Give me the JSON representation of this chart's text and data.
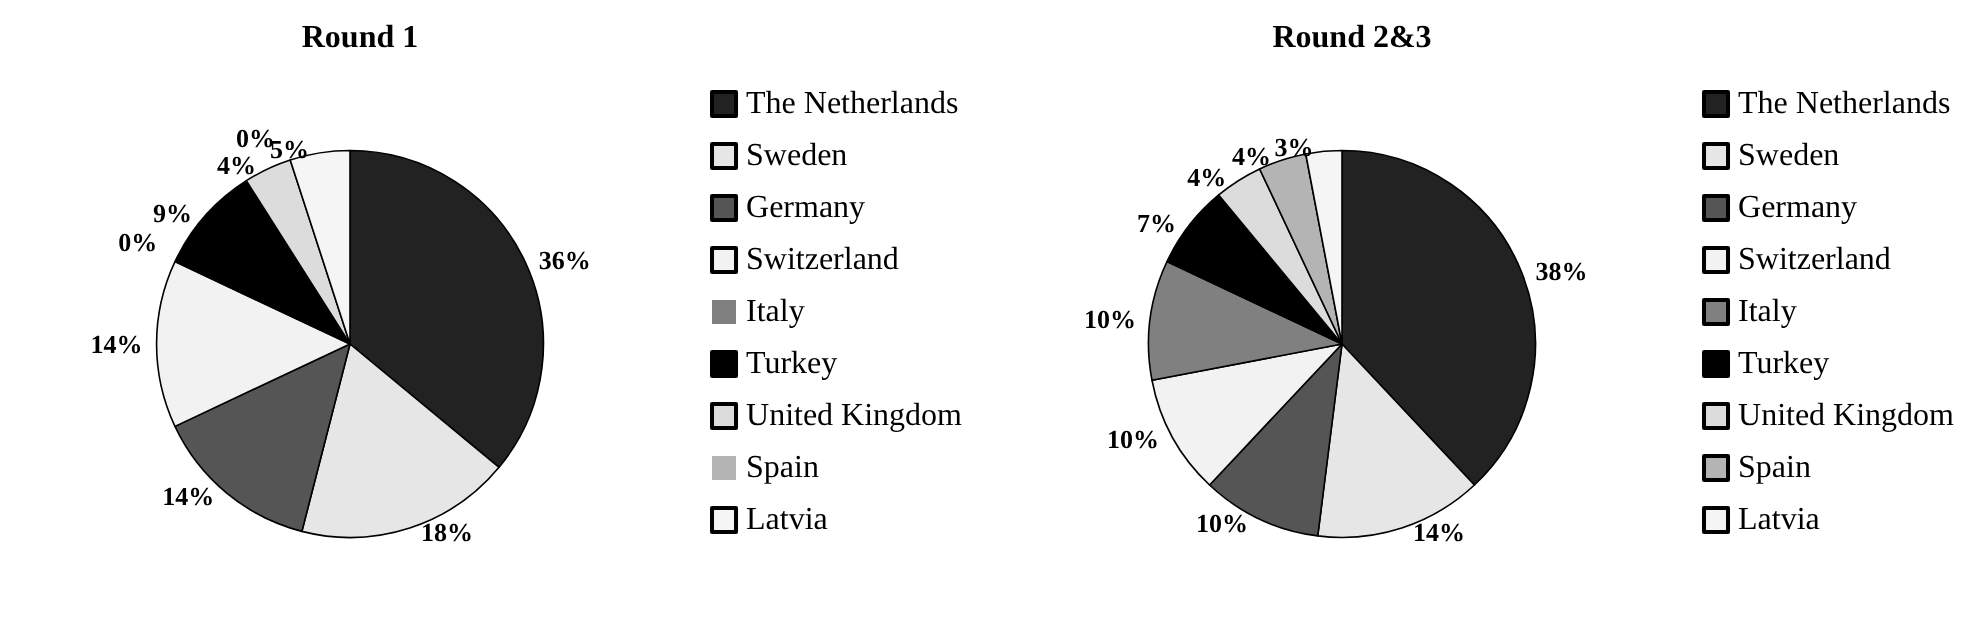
{
  "chart_data": [
    {
      "type": "pie",
      "title": "Round 1",
      "categories": [
        "The Netherlands",
        "Sweden",
        "Germany",
        "Switzerland",
        "Italy",
        "Turkey",
        "United Kingdom",
        "Spain",
        "Latvia"
      ],
      "values": [
        36,
        18,
        14,
        14,
        0,
        9,
        4,
        0,
        5
      ],
      "value_labels": [
        "36%",
        "18%",
        "14%",
        "14%",
        "0%",
        "9%",
        "4%",
        "0%",
        "5%"
      ],
      "colors": [
        "#222222",
        "#e6e6e6",
        "#555555",
        "#f2f2f2",
        "#808080",
        "#000000",
        "#dcdcdc",
        "#b4b4b4",
        "#f5f5f5"
      ],
      "legend": "right"
    },
    {
      "type": "pie",
      "title": "Round 2&3",
      "categories": [
        "The Netherlands",
        "Sweden",
        "Germany",
        "Switzerland",
        "Italy",
        "Turkey",
        "United Kingdom",
        "Spain",
        "Latvia"
      ],
      "values": [
        38,
        14,
        10,
        10,
        10,
        7,
        4,
        4,
        3
      ],
      "value_labels": [
        "38%",
        "14%",
        "10%",
        "10%",
        "10%",
        "7%",
        "4%",
        "4%",
        "3%"
      ],
      "colors": [
        "#222222",
        "#e6e6e6",
        "#555555",
        "#f2f2f2",
        "#808080",
        "#000000",
        "#dcdcdc",
        "#b4b4b4",
        "#f5f5f5"
      ],
      "legend": "right"
    }
  ]
}
